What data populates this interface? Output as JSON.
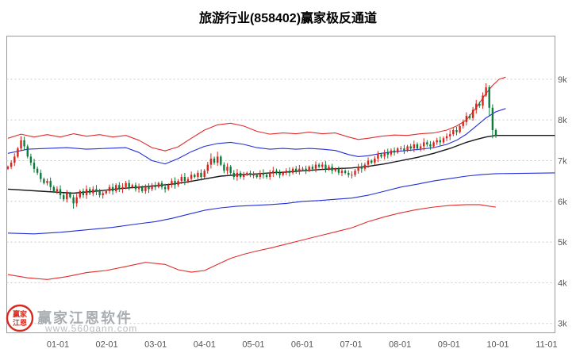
{
  "header": {
    "title": "旅游行业(858402)赢家极反通道"
  },
  "watermark": {
    "name": "赢家江恩软件",
    "url": "www.560gann.com",
    "logo_line1": "赢家",
    "logo_line2": "江恩"
  },
  "chart_data": {
    "type": "candlestick",
    "title": "旅游行业(858402)赢家极反通道",
    "xlabel": "",
    "ylabel": "",
    "legend": "none",
    "grid": "horizontal-dotted",
    "ylim": [
      2.77,
      10.06
    ],
    "y_ticks": [
      {
        "value": 9,
        "label": "9k"
      },
      {
        "value": 8,
        "label": "8k"
      },
      {
        "value": 7,
        "label": "7k"
      },
      {
        "value": 6,
        "label": "6k"
      },
      {
        "value": 5,
        "label": "5k"
      },
      {
        "value": 4,
        "label": "4k"
      },
      {
        "value": 3,
        "label": "3k"
      }
    ],
    "x_ticks": [
      "01-01",
      "02-01",
      "03-01",
      "04-01",
      "05-01",
      "06-01",
      "07-01",
      "08-01",
      "09-01",
      "10-01",
      "11-01"
    ],
    "first_open": 6.8,
    "open_rule": "previous_close",
    "default_wick": 0.05,
    "close": [
      6.85,
      6.95,
      7.1,
      7.3,
      7.5,
      7.35,
      7.1,
      6.95,
      6.8,
      6.7,
      6.55,
      6.45,
      6.5,
      6.35,
      6.25,
      6.3,
      6.15,
      6.05,
      6.2,
      6.1,
      5.95,
      6.1,
      6.25,
      6.15,
      6.3,
      6.2,
      6.3,
      6.25,
      6.15,
      6.2,
      6.25,
      6.35,
      6.25,
      6.4,
      6.3,
      6.35,
      6.45,
      6.35,
      6.4,
      6.3,
      6.35,
      6.25,
      6.35,
      6.3,
      6.4,
      6.35,
      6.45,
      6.35,
      6.3,
      6.4,
      6.5,
      6.4,
      6.5,
      6.6,
      6.5,
      6.55,
      6.65,
      6.6,
      6.7,
      6.6,
      6.75,
      6.9,
      7.05,
      6.95,
      7.1,
      6.9,
      6.75,
      6.85,
      6.7,
      6.6,
      6.7,
      6.6,
      6.65,
      6.7,
      6.65,
      6.65,
      6.6,
      6.7,
      6.65,
      6.6,
      6.7,
      6.75,
      6.7,
      6.65,
      6.7,
      6.75,
      6.7,
      6.8,
      6.75,
      6.8,
      6.8,
      6.75,
      6.85,
      6.8,
      6.9,
      6.85,
      6.9,
      6.8,
      6.85,
      6.75,
      6.8,
      6.7,
      6.75,
      6.7,
      6.65,
      6.65,
      6.75,
      6.85,
      6.8,
      6.9,
      7.0,
      6.95,
      7.05,
      7.15,
      7.1,
      7.2,
      7.15,
      7.25,
      7.2,
      7.3,
      7.3,
      7.25,
      7.35,
      7.3,
      7.4,
      7.3,
      7.35,
      7.45,
      7.4,
      7.35,
      7.45,
      7.5,
      7.45,
      7.55,
      7.6,
      7.65,
      7.75,
      7.7,
      7.85,
      7.95,
      8.1,
      8.05,
      8.25,
      8.4,
      8.35,
      8.6,
      8.8,
      8.3,
      7.75,
      7.6
    ],
    "wick_overrides": {
      "4": [
        7.6,
        null
      ],
      "20": [
        null,
        5.82
      ],
      "62": [
        7.18,
        null
      ],
      "64": [
        7.22,
        null
      ],
      "146": [
        8.9,
        null
      ],
      "147": [
        null,
        8.1
      ],
      "148": [
        null,
        7.55
      ]
    },
    "bands": [
      {
        "name": "upper-outer-red-rail",
        "color": "#e22d2d",
        "width": 1.1,
        "points": [
          [
            0,
            7.55
          ],
          [
            4,
            7.65
          ],
          [
            8,
            7.58
          ],
          [
            12,
            7.64
          ],
          [
            16,
            7.58
          ],
          [
            20,
            7.66
          ],
          [
            24,
            7.6
          ],
          [
            28,
            7.64
          ],
          [
            32,
            7.58
          ],
          [
            36,
            7.62
          ],
          [
            40,
            7.5
          ],
          [
            44,
            7.32
          ],
          [
            48,
            7.24
          ],
          [
            52,
            7.34
          ],
          [
            56,
            7.55
          ],
          [
            60,
            7.75
          ],
          [
            64,
            7.88
          ],
          [
            68,
            7.92
          ],
          [
            72,
            7.85
          ],
          [
            76,
            7.72
          ],
          [
            80,
            7.65
          ],
          [
            84,
            7.68
          ],
          [
            88,
            7.66
          ],
          [
            92,
            7.7
          ],
          [
            96,
            7.66
          ],
          [
            100,
            7.68
          ],
          [
            104,
            7.58
          ],
          [
            107,
            7.52
          ],
          [
            110,
            7.55
          ],
          [
            114,
            7.6
          ],
          [
            118,
            7.63
          ],
          [
            122,
            7.62
          ],
          [
            126,
            7.66
          ],
          [
            130,
            7.68
          ],
          [
            134,
            7.75
          ],
          [
            137,
            7.85
          ],
          [
            140,
            8.0
          ],
          [
            143,
            8.3
          ],
          [
            146,
            8.65
          ],
          [
            148,
            8.85
          ],
          [
            150,
            9.0
          ],
          [
            152,
            9.05
          ]
        ]
      },
      {
        "name": "upper-inner-blue-rail",
        "color": "#2330d8",
        "width": 1.1,
        "points": [
          [
            0,
            7.18
          ],
          [
            6,
            7.28
          ],
          [
            12,
            7.3
          ],
          [
            18,
            7.32
          ],
          [
            24,
            7.28
          ],
          [
            30,
            7.3
          ],
          [
            36,
            7.32
          ],
          [
            40,
            7.2
          ],
          [
            44,
            7.0
          ],
          [
            48,
            6.92
          ],
          [
            52,
            7.05
          ],
          [
            56,
            7.22
          ],
          [
            60,
            7.35
          ],
          [
            64,
            7.42
          ],
          [
            68,
            7.45
          ],
          [
            72,
            7.4
          ],
          [
            76,
            7.32
          ],
          [
            80,
            7.28
          ],
          [
            84,
            7.3
          ],
          [
            88,
            7.28
          ],
          [
            92,
            7.3
          ],
          [
            96,
            7.28
          ],
          [
            100,
            7.25
          ],
          [
            104,
            7.15
          ],
          [
            107,
            7.1
          ],
          [
            110,
            7.12
          ],
          [
            114,
            7.18
          ],
          [
            118,
            7.22
          ],
          [
            122,
            7.25
          ],
          [
            126,
            7.28
          ],
          [
            130,
            7.32
          ],
          [
            134,
            7.4
          ],
          [
            137,
            7.5
          ],
          [
            140,
            7.65
          ],
          [
            143,
            7.85
          ],
          [
            146,
            8.05
          ],
          [
            149,
            8.2
          ],
          [
            152,
            8.28
          ]
        ]
      },
      {
        "name": "middle-black-line",
        "color": "#17181c",
        "width": 1.4,
        "points": [
          [
            0,
            6.3
          ],
          [
            10,
            6.25
          ],
          [
            20,
            6.2
          ],
          [
            28,
            6.26
          ],
          [
            35,
            6.32
          ],
          [
            42,
            6.36
          ],
          [
            50,
            6.42
          ],
          [
            55,
            6.48
          ],
          [
            60,
            6.55
          ],
          [
            65,
            6.62
          ],
          [
            70,
            6.65
          ],
          [
            75,
            6.67
          ],
          [
            80,
            6.7
          ],
          [
            85,
            6.72
          ],
          [
            90,
            6.75
          ],
          [
            95,
            6.78
          ],
          [
            100,
            6.8
          ],
          [
            105,
            6.82
          ],
          [
            110,
            6.86
          ],
          [
            115,
            6.92
          ],
          [
            120,
            7.0
          ],
          [
            125,
            7.08
          ],
          [
            130,
            7.18
          ],
          [
            135,
            7.3
          ],
          [
            140,
            7.45
          ],
          [
            143,
            7.52
          ],
          [
            146,
            7.58
          ],
          [
            149,
            7.62
          ],
          [
            167,
            7.62
          ]
        ]
      },
      {
        "name": "lower-inner-blue-rail",
        "color": "#2330d8",
        "width": 1.1,
        "points": [
          [
            0,
            5.22
          ],
          [
            8,
            5.2
          ],
          [
            16,
            5.24
          ],
          [
            24,
            5.3
          ],
          [
            32,
            5.36
          ],
          [
            40,
            5.45
          ],
          [
            45,
            5.5
          ],
          [
            50,
            5.58
          ],
          [
            55,
            5.68
          ],
          [
            60,
            5.78
          ],
          [
            65,
            5.84
          ],
          [
            70,
            5.88
          ],
          [
            75,
            5.9
          ],
          [
            80,
            5.92
          ],
          [
            85,
            5.95
          ],
          [
            90,
            6.0
          ],
          [
            95,
            6.02
          ],
          [
            100,
            6.05
          ],
          [
            105,
            6.08
          ],
          [
            110,
            6.15
          ],
          [
            115,
            6.25
          ],
          [
            120,
            6.35
          ],
          [
            125,
            6.42
          ],
          [
            130,
            6.5
          ],
          [
            135,
            6.56
          ],
          [
            140,
            6.62
          ],
          [
            145,
            6.66
          ],
          [
            149,
            6.68
          ],
          [
            167,
            6.7
          ]
        ]
      },
      {
        "name": "lower-outer-red-rail",
        "color": "#e22d2d",
        "width": 1.1,
        "points": [
          [
            0,
            4.2
          ],
          [
            6,
            4.12
          ],
          [
            12,
            4.08
          ],
          [
            18,
            4.15
          ],
          [
            24,
            4.25
          ],
          [
            30,
            4.3
          ],
          [
            36,
            4.4
          ],
          [
            42,
            4.5
          ],
          [
            48,
            4.45
          ],
          [
            52,
            4.32
          ],
          [
            56,
            4.26
          ],
          [
            60,
            4.3
          ],
          [
            64,
            4.45
          ],
          [
            68,
            4.6
          ],
          [
            72,
            4.7
          ],
          [
            76,
            4.78
          ],
          [
            80,
            4.85
          ],
          [
            85,
            4.95
          ],
          [
            90,
            5.05
          ],
          [
            95,
            5.15
          ],
          [
            100,
            5.25
          ],
          [
            105,
            5.35
          ],
          [
            110,
            5.5
          ],
          [
            115,
            5.62
          ],
          [
            120,
            5.72
          ],
          [
            125,
            5.8
          ],
          [
            130,
            5.86
          ],
          [
            135,
            5.9
          ],
          [
            140,
            5.92
          ],
          [
            144,
            5.92
          ],
          [
            147,
            5.88
          ],
          [
            149,
            5.86
          ]
        ]
      }
    ],
    "colors": {
      "up": "#d9241c",
      "down": "#0b7c3a",
      "grid": "#c9c9c9",
      "axis_text": "#555555",
      "frame": "#9a9a9a"
    }
  }
}
